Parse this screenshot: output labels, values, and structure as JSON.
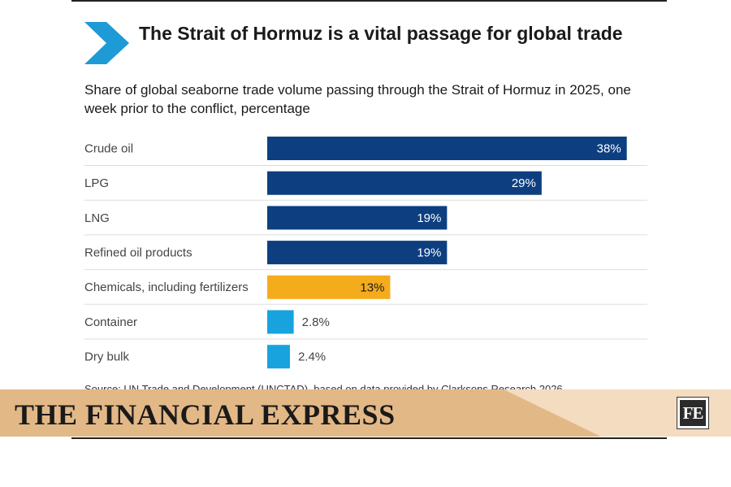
{
  "header": {
    "title": "The Strait of Hormuz is a vital passage for global trade",
    "subtitle": "Share of global seaborne trade volume passing through the Strait of Hormuz in 2025, one week prior to the conflict, percentage"
  },
  "source": "Source: UN Trade and Development (UNCTAD), based on data provided by Clarksons Research 2026",
  "banner": {
    "publication": "THE FINANCIAL EXPRESS",
    "logo_text": "FE",
    "colors": {
      "banner_left": "#e3b887",
      "banner_right": "#f4dcc0"
    }
  },
  "colors": {
    "primary_bar": "#0d3f80",
    "highlight_bar": "#f5ac1c",
    "small_bar": "#18a3df",
    "chevron": "#1e9ad6"
  },
  "chart_data": {
    "type": "bar",
    "orientation": "horizontal",
    "title": "The Strait of Hormuz is a vital passage for global trade",
    "subtitle": "Share of global seaborne trade volume passing through the Strait of Hormuz in 2025, one week prior to the conflict, percentage",
    "categories": [
      "Crude oil",
      "LPG",
      "LNG",
      "Refined oil products",
      "Chemicals, including fertilizers",
      "Container",
      "Dry bulk"
    ],
    "values": [
      38,
      29,
      19,
      19,
      13,
      2.8,
      2.4
    ],
    "value_labels": [
      "38%",
      "29%",
      "19%",
      "19%",
      "13%",
      "2.8%",
      "2.4%"
    ],
    "bar_colors": [
      "#0d3f80",
      "#0d3f80",
      "#0d3f80",
      "#0d3f80",
      "#f5ac1c",
      "#18a3df",
      "#18a3df"
    ],
    "xlim": [
      0,
      40
    ],
    "grid": false,
    "legend": "none"
  }
}
